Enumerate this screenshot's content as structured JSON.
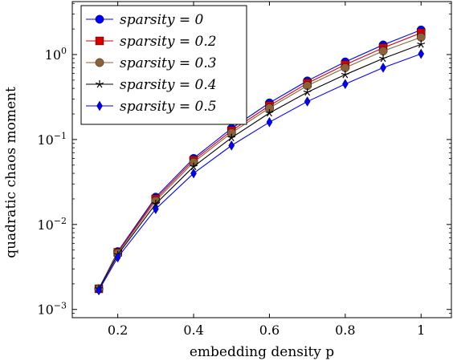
{
  "chart_data": {
    "type": "line",
    "xlabel": "embedding density p",
    "ylabel": "quadratic chaos moment",
    "xlim": [
      0.08,
      1.08
    ],
    "ylim": [
      0.0008,
      4.2
    ],
    "yscale": "log",
    "grid": false,
    "legend_position": "top-left",
    "x": [
      0.15,
      0.2,
      0.3,
      0.4,
      0.5,
      0.6,
      0.7,
      0.8,
      0.9,
      1.0
    ],
    "x_ticks": [
      {
        "value": 0.2,
        "label": "0.2"
      },
      {
        "value": 0.4,
        "label": "0.4"
      },
      {
        "value": 0.6,
        "label": "0.6"
      },
      {
        "value": 0.8,
        "label": "0.8"
      },
      {
        "value": 1.0,
        "label": "1"
      }
    ],
    "y_ticks": [
      {
        "value": 0.001,
        "base": "10",
        "exp": "−3"
      },
      {
        "value": 0.01,
        "base": "10",
        "exp": "−2"
      },
      {
        "value": 0.1,
        "base": "10",
        "exp": "−1"
      },
      {
        "value": 1,
        "base": "10",
        "exp": "0"
      }
    ],
    "series": [
      {
        "name": "sparsity = 0",
        "color": "#0000ff",
        "marker": "circle",
        "values": [
          0.00175,
          0.0048,
          0.021,
          0.06,
          0.135,
          0.27,
          0.49,
          0.82,
          1.3,
          1.95
        ]
      },
      {
        "name": "sparsity = 0.2",
        "color": "#d40000",
        "marker": "square",
        "values": [
          0.00175,
          0.0047,
          0.02,
          0.057,
          0.127,
          0.25,
          0.46,
          0.76,
          1.2,
          1.8
        ]
      },
      {
        "name": "sparsity = 0.3",
        "color": "#8c6239",
        "marker": "circle",
        "values": [
          0.00175,
          0.0046,
          0.019,
          0.054,
          0.12,
          0.235,
          0.43,
          0.7,
          1.1,
          1.6
        ]
      },
      {
        "name": "sparsity = 0.4",
        "color": "#000000",
        "marker": "star",
        "values": [
          0.00175,
          0.0044,
          0.0175,
          0.048,
          0.105,
          0.205,
          0.36,
          0.58,
          0.9,
          1.32
        ]
      },
      {
        "name": "sparsity = 0.5",
        "color": "#0000ff",
        "marker": "diamond",
        "values": [
          0.00168,
          0.0041,
          0.0152,
          0.04,
          0.085,
          0.16,
          0.28,
          0.45,
          0.7,
          1.02
        ]
      }
    ]
  }
}
